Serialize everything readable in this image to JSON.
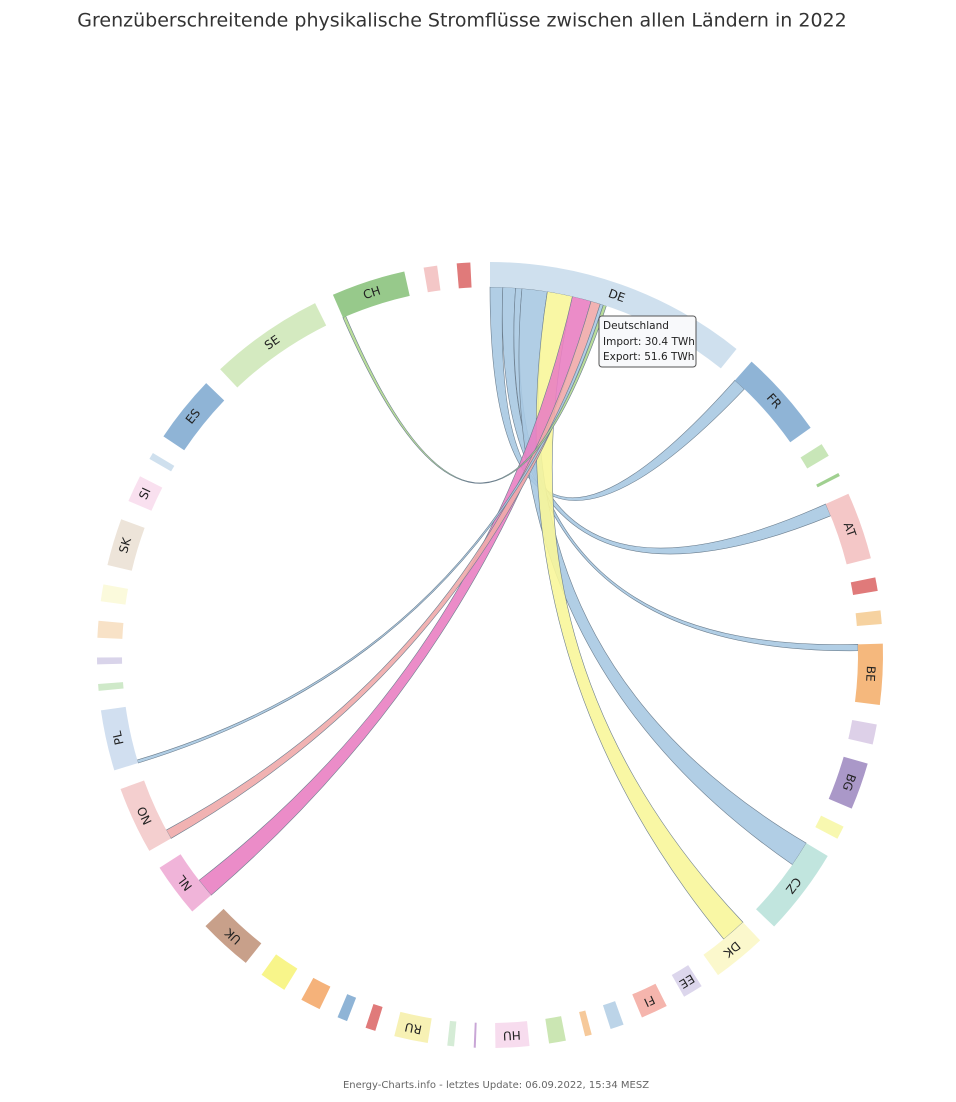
{
  "chart_data": {
    "type": "chord",
    "title": "Grenzüberschreitende physikalische Stromflüsse zwischen allen Ländern in 2022",
    "footer": "Energy-Charts.info - letztes Update: 06.09.2022, 15:34 MESZ",
    "tooltip": {
      "title": "Deutschland",
      "lines": [
        "Import: 30.4 TWh",
        "Export: 51.6 TWh"
      ]
    },
    "nodes": [
      {
        "label": "DE",
        "value": 39,
        "color": "#cfe0ee"
      },
      {
        "label": "FR",
        "value": 13,
        "color": "#8fb4d6"
      },
      {
        "label": null,
        "value": 2,
        "color": "#c8e6b8"
      },
      {
        "label": null,
        "value": 0.5,
        "color": "#a0d090"
      },
      {
        "label": "AT",
        "value": 10,
        "color": "#f4c7c7"
      },
      {
        "label": null,
        "value": 2,
        "color": "#e07a7a"
      },
      {
        "label": null,
        "value": 2,
        "color": "#f6d2a0"
      },
      {
        "label": "BE",
        "value": 9,
        "color": "#f5b87d"
      },
      {
        "label": null,
        "value": 3,
        "color": "#ddd0e8"
      },
      {
        "label": "BG",
        "value": 7,
        "color": "#aa98c8"
      },
      {
        "label": null,
        "value": 2,
        "color": "#f8f8b0"
      },
      {
        "label": "CZ",
        "value": 13,
        "color": "#c1e5de"
      },
      {
        "label": "DK",
        "value": 8,
        "color": "#fbf8cc"
      },
      {
        "label": "EE",
        "value": 3,
        "color": "#dcd6ec"
      },
      {
        "label": "FI",
        "value": 4,
        "color": "#f5b5ad"
      },
      {
        "label": null,
        "value": 2,
        "color": "#bcd4e8"
      },
      {
        "label": null,
        "value": 1,
        "color": "#f6c99a"
      },
      {
        "label": null,
        "value": 2.5,
        "color": "#cbe6b3"
      },
      {
        "label": "HU",
        "value": 5,
        "color": "#f7dcee"
      },
      {
        "label": null,
        "value": 0.3,
        "color": "#c9a6d6"
      },
      {
        "label": null,
        "value": 1,
        "color": "#d5ecd6"
      },
      {
        "label": "RU",
        "value": 5,
        "color": "#f7f1b4"
      },
      {
        "label": null,
        "value": 1.5,
        "color": "#e07a7a"
      },
      {
        "label": null,
        "value": 1.5,
        "color": "#8fb4d6"
      },
      {
        "label": null,
        "value": 3,
        "color": "#f5b27a"
      },
      {
        "label": null,
        "value": 4,
        "color": "#f8f58a"
      },
      {
        "label": "UK",
        "value": 8,
        "color": "#c8a08a"
      },
      {
        "label": "NL",
        "value": 8,
        "color": "#f0b4d9"
      },
      {
        "label": "NO",
        "value": 10,
        "color": "#f4cfcf"
      },
      {
        "label": "PL",
        "value": 9,
        "color": "#d1dff0"
      },
      {
        "label": null,
        "value": 1,
        "color": "#cfe9c9"
      },
      {
        "label": null,
        "value": 1,
        "color": "#d9d4ea"
      },
      {
        "label": null,
        "value": 2.5,
        "color": "#f8e2c7"
      },
      {
        "label": null,
        "value": 2.5,
        "color": "#fbfadc"
      },
      {
        "label": "SK",
        "value": 7,
        "color": "#ede4d9"
      },
      {
        "label": "SI",
        "value": 4,
        "color": "#f9e0ef"
      },
      {
        "label": null,
        "value": 1,
        "color": "#cfe0ee"
      },
      {
        "label": "ES",
        "value": 10,
        "color": "#8fb4d6"
      },
      {
        "label": "SE",
        "value": 17,
        "color": "#d4eac0"
      },
      {
        "label": "CH",
        "value": 11,
        "color": "#97c98b"
      },
      {
        "label": null,
        "value": 2,
        "color": "#f4c7c7"
      },
      {
        "label": null,
        "value": 2,
        "color": "#e07a7a"
      }
    ],
    "links": [
      {
        "source": 0,
        "target": 1,
        "value": 2,
        "color": "#a9c9e2"
      },
      {
        "source": 0,
        "target": 4,
        "value": 2,
        "color": "#a9c9e2"
      },
      {
        "source": 0,
        "target": 7,
        "value": 1,
        "color": "#a9c9e2"
      },
      {
        "source": 0,
        "target": 11,
        "value": 4,
        "color": "#a9c9e2"
      },
      {
        "source": 0,
        "target": 12,
        "value": 4,
        "color": "#f8f69a"
      },
      {
        "source": 0,
        "target": 27,
        "value": 3,
        "color": "#e97fc2"
      },
      {
        "source": 0,
        "target": 28,
        "value": 1.5,
        "color": "#efaaaa"
      },
      {
        "source": 0,
        "target": 29,
        "value": 0.5,
        "color": "#a9c9e2"
      },
      {
        "source": 0,
        "target": 39,
        "value": 0.5,
        "color": "#b2d98f"
      }
    ]
  }
}
